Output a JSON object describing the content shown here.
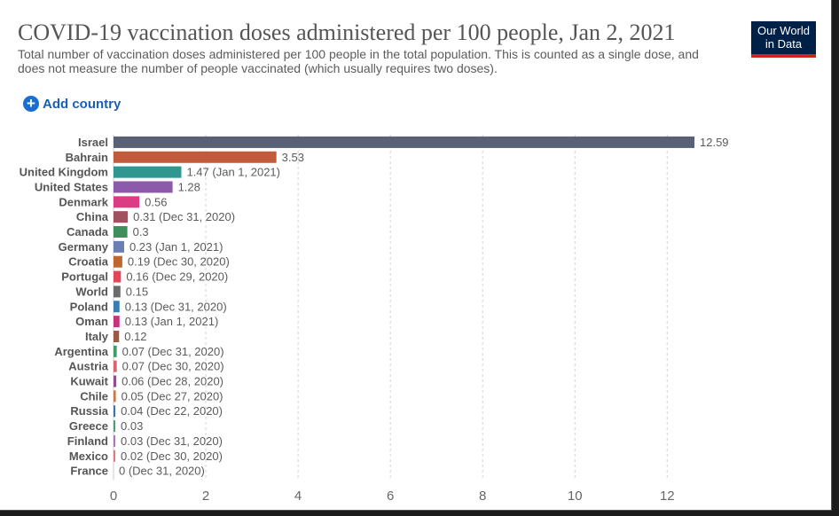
{
  "header": {
    "title": "COVID-19 vaccination doses administered per 100 people, Jan 2, 2021",
    "subtitle": "Total number of vaccination doses administered per 100 people in the total population. This is counted as a single dose, and does not measure the number of people vaccinated (which usually requires two doses).",
    "logo_line1": "Our World",
    "logo_line2": "in Data",
    "add_country_label": "Add country"
  },
  "colors": {
    "logo_bg": "#002147",
    "logo_accent": "#ce261e",
    "link": "#1a5fb4"
  },
  "chart_data": {
    "type": "bar",
    "orientation": "horizontal",
    "title": "COVID-19 vaccination doses administered per 100 people, Jan 2, 2021",
    "xlim": [
      0,
      12.59
    ],
    "xticks": [
      0,
      2,
      4,
      6,
      8,
      10,
      12
    ],
    "grid": "vertical dashed",
    "categories": [
      "Israel",
      "Bahrain",
      "United Kingdom",
      "United States",
      "Denmark",
      "China",
      "Canada",
      "Germany",
      "Croatia",
      "Portugal",
      "World",
      "Poland",
      "Oman",
      "Italy",
      "Argentina",
      "Austria",
      "Kuwait",
      "Chile",
      "Russia",
      "Greece",
      "Finland",
      "Mexico",
      "France"
    ],
    "values": [
      12.59,
      3.53,
      1.47,
      1.28,
      0.56,
      0.31,
      0.3,
      0.23,
      0.19,
      0.16,
      0.15,
      0.13,
      0.13,
      0.12,
      0.07,
      0.07,
      0.06,
      0.05,
      0.04,
      0.03,
      0.03,
      0.02,
      0
    ],
    "value_labels": [
      "12.59",
      "3.53",
      "1.47 (Jan 1, 2021)",
      "1.28",
      "0.56",
      "0.31 (Dec 31, 2020)",
      "0.3",
      "0.23 (Jan 1, 2021)",
      "0.19 (Dec 30, 2020)",
      "0.16 (Dec 29, 2020)",
      "0.15",
      "0.13 (Dec 31, 2020)",
      "0.13 (Jan 1, 2021)",
      "0.12",
      "0.07 (Dec 31, 2020)",
      "0.07 (Dec 30, 2020)",
      "0.06 (Dec 28, 2020)",
      "0.05 (Dec 27, 2020)",
      "0.04 (Dec 22, 2020)",
      "0.03",
      "0.03 (Dec 31, 2020)",
      "0.02 (Dec 30, 2020)",
      "0 (Dec 31, 2020)"
    ],
    "colors": [
      "#586175",
      "#c15b3a",
      "#2f978f",
      "#8c5aa9",
      "#db3d85",
      "#a0505e",
      "#3e8f5b",
      "#6a80b5",
      "#c0672f",
      "#e0485a",
      "#6b6b6b",
      "#3a7db3",
      "#c9337c",
      "#9b5a42",
      "#3f9c68",
      "#d96570",
      "#8c4f8c",
      "#c27a4a",
      "#3e74b0",
      "#4aa36f",
      "#b072c0",
      "#e07a80",
      "#9aa0a8"
    ]
  }
}
